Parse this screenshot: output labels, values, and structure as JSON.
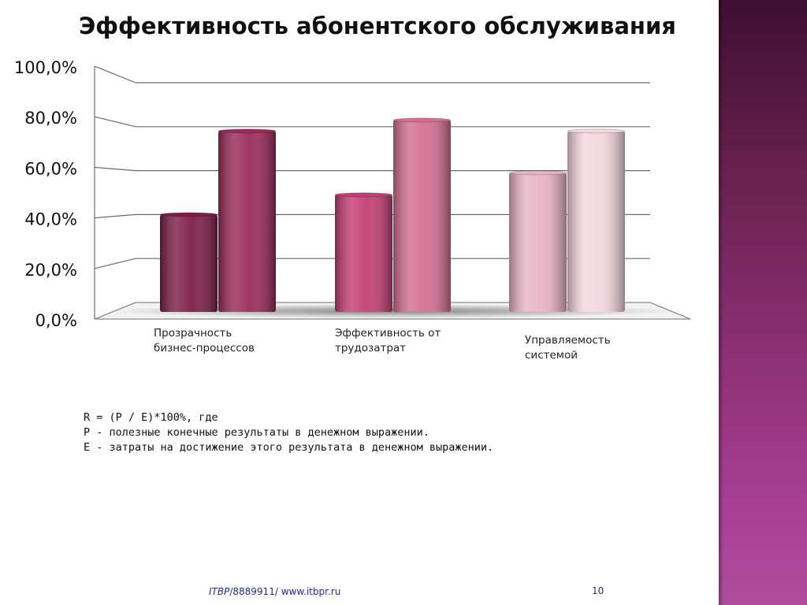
{
  "slide": {
    "title": "Эффективность абонентского обслуживания",
    "formula_lines": [
      "R = (P / E)*100%, где",
      "P - полезные конечные результаты в денежном выражении.",
      "E - затраты на достижение этого результата в денежном выражении."
    ],
    "footer_brand": "ITBP",
    "footer_rest": "/8889911/ www.itbpr.ru",
    "page_number": "10"
  },
  "colors": {
    "side_panel_top": "#3e0f30",
    "side_panel_bottom": "#b04d9c"
  },
  "chart_data": {
    "type": "bar",
    "bar_style": "3d-cylinder",
    "categories": [
      [
        "Прозрачность",
        "бизнес-процессов"
      ],
      [
        "Эффективность от",
        "трудозатрат"
      ],
      [
        "Управляемость",
        "системой"
      ]
    ],
    "values": [
      [
        40,
        78
      ],
      [
        49,
        83
      ],
      [
        59,
        78
      ]
    ],
    "ylim": [
      0,
      100
    ],
    "yticks": [
      "0,0%",
      "20,0%",
      "40,0%",
      "60,0%",
      "80,0%",
      "100,0%"
    ],
    "grid": true,
    "legend": "none",
    "bar_colors": [
      [
        "#7e1d48",
        "#9a2a5a"
      ],
      [
        "#c43e74",
        "#d46f92"
      ],
      [
        "#e9b4c6",
        "#f5d7e0"
      ]
    ]
  }
}
